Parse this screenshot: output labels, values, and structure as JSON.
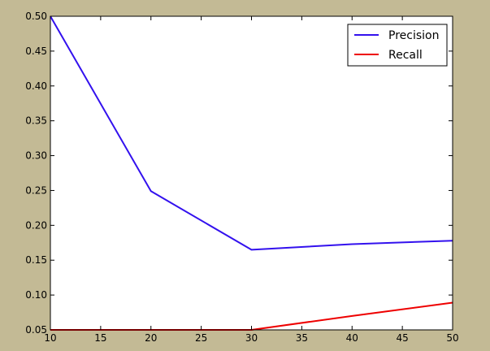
{
  "colors": {
    "figure_background": "#c3ba95",
    "plot_background": "#ffffff",
    "precision": "#3311ee",
    "recall": "#ee0000"
  },
  "chart_data": {
    "type": "line",
    "title": "",
    "xlabel": "",
    "ylabel": "",
    "x": [
      10,
      20,
      30,
      40,
      50
    ],
    "series": [
      {
        "name": "Precision",
        "color": "#3311ee",
        "values": [
          0.5,
          0.249,
          0.165,
          0.173,
          0.178
        ]
      },
      {
        "name": "Recall",
        "color": "#ee0000",
        "values": [
          0.05,
          0.05,
          0.05,
          0.07,
          0.089
        ]
      }
    ],
    "xlim": [
      10,
      50
    ],
    "ylim": [
      0.05,
      0.5
    ],
    "xticks": [
      "10",
      "15",
      "20",
      "25",
      "30",
      "35",
      "40",
      "45",
      "50"
    ],
    "yticks": [
      "0.05",
      "0.10",
      "0.15",
      "0.20",
      "0.25",
      "0.30",
      "0.35",
      "0.40",
      "0.45",
      "0.50"
    ],
    "grid": false,
    "legend_position": "top-right"
  }
}
